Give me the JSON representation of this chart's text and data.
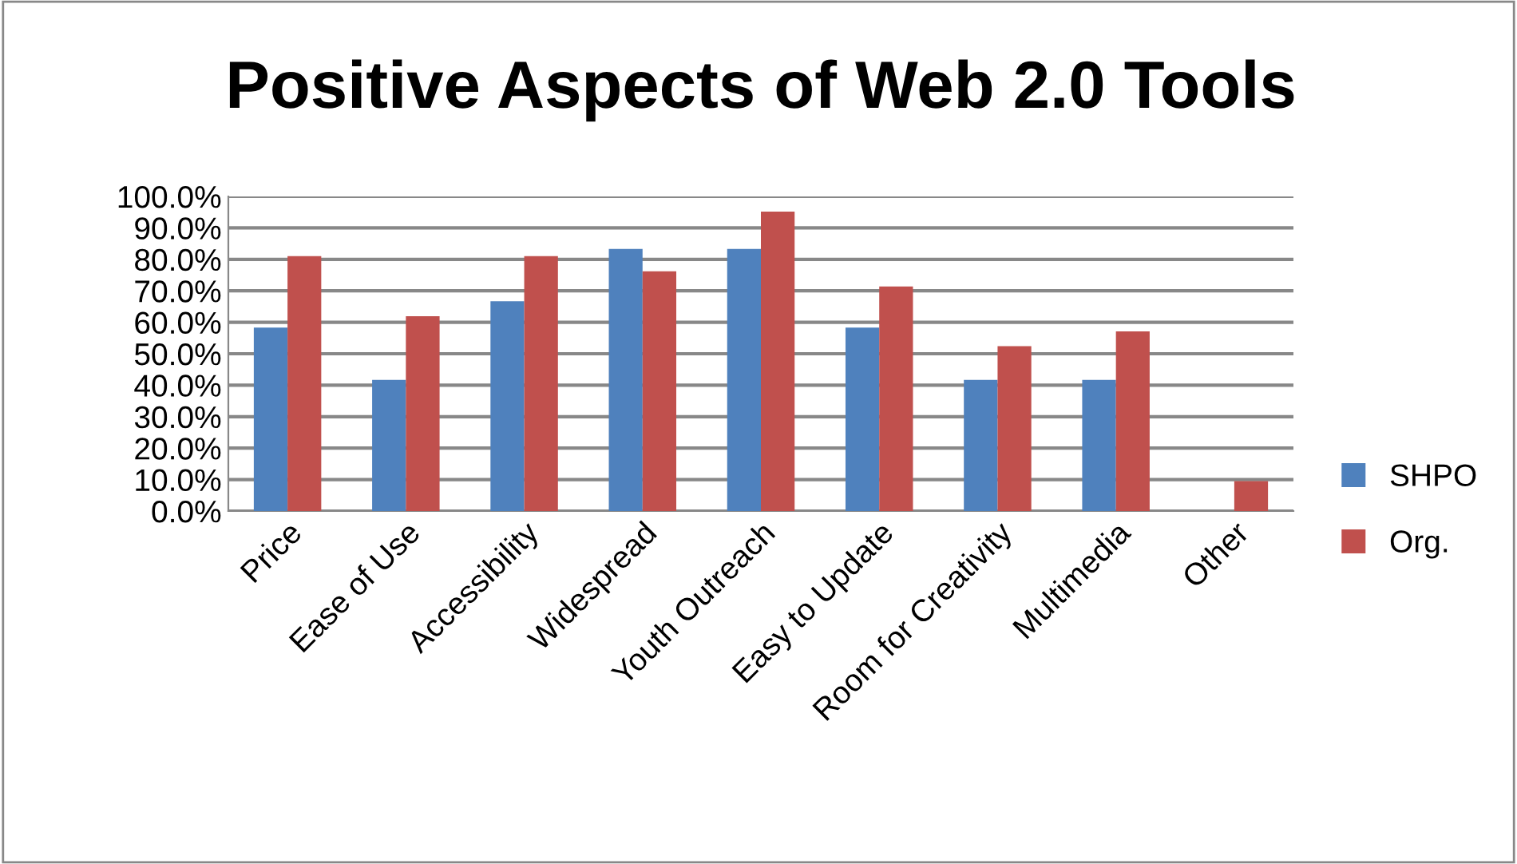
{
  "chart_data": {
    "type": "bar",
    "title": "Positive Aspects of Web 2.0 Tools",
    "categories": [
      "Price",
      "Ease of Use",
      "Accessibility",
      "Widespread",
      "Youth Outreach",
      "Easy to Update",
      "Room for Creativity",
      "Multimedia",
      "Other"
    ],
    "series": [
      {
        "name": "SHPO",
        "color": "#4f81bd",
        "values": [
          58.3,
          41.7,
          66.7,
          83.3,
          83.3,
          58.3,
          41.7,
          41.7,
          0
        ]
      },
      {
        "name": "Org.",
        "color": "#c0504d",
        "values": [
          81.0,
          61.9,
          81.0,
          76.2,
          95.2,
          71.4,
          52.4,
          57.1,
          9.5
        ]
      }
    ],
    "ylim": [
      0,
      100
    ],
    "yticks": [
      {
        "value": 0,
        "label": "0.0%"
      },
      {
        "value": 10,
        "label": "10.0%"
      },
      {
        "value": 20,
        "label": "20.0%"
      },
      {
        "value": 30,
        "label": "30.0%"
      },
      {
        "value": 40,
        "label": "40.0%"
      },
      {
        "value": 50,
        "label": "50.0%"
      },
      {
        "value": 60,
        "label": "60.0%"
      },
      {
        "value": 70,
        "label": "70.0%"
      },
      {
        "value": 80,
        "label": "80.0%"
      },
      {
        "value": 90,
        "label": "90.0%"
      },
      {
        "value": 100,
        "label": "100.0%"
      }
    ],
    "grid": "y",
    "legend": "right"
  }
}
